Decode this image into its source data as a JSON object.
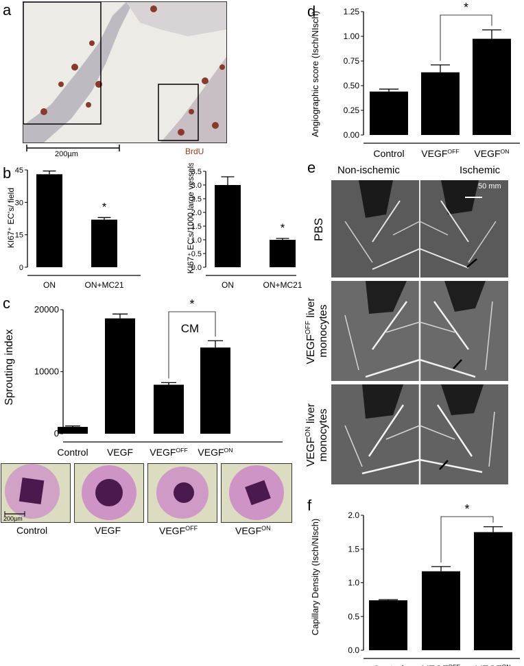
{
  "panels": {
    "a": "a",
    "b": "b",
    "c": "c",
    "d": "d",
    "e": "e",
    "f": "f"
  },
  "panel_a": {
    "scale_label": "200µm",
    "stain_label": "BrdU",
    "stain_color": "#9a3b1b"
  },
  "panel_b": {
    "ylabel_left": "KI67⁺ EC's/ field",
    "ylabel_right": "KI67⁺ EC's/1000 large vessels",
    "star": "*"
  },
  "panel_c": {
    "ylabel": "Sprouting index",
    "cm_label": "CM",
    "star": "*",
    "scale_label": "200µm",
    "thumb_labels": [
      "Control",
      "VEGF",
      "VEGFOFF",
      "VEGFON"
    ],
    "thumb_color": "#b03fc4"
  },
  "panel_d": {
    "ylabel": "Angiographic score (Isch/NIsch)",
    "star": "*"
  },
  "panel_e": {
    "non_ischemic": "Non-ischemic",
    "ischemic": "Ischemic",
    "scale_label": "50 mm",
    "row_labels": [
      "PBS",
      "VEGFOFF liver monocytes",
      "VEGFON liver monocytes"
    ]
  },
  "panel_f": {
    "ylabel": "Capillary Density (Isch/NIsch)",
    "star": "*"
  },
  "chart_data": [
    {
      "id": "b-left",
      "type": "bar",
      "categories": [
        "ON",
        "ON+MC21"
      ],
      "values": [
        43,
        22
      ],
      "errors": [
        1.5,
        1
      ],
      "ylim": [
        0,
        45
      ],
      "yticks": [
        0,
        15,
        30,
        45
      ],
      "ylabel": "KI67⁺ EC's/ field"
    },
    {
      "id": "b-right",
      "type": "bar",
      "categories": [
        "ON",
        "ON+MC21"
      ],
      "values": [
        3.0,
        1.0
      ],
      "errors": [
        0.3,
        0.05
      ],
      "ylim": [
        0,
        3.5
      ],
      "yticks": [
        "0.0",
        "0.5",
        "1.0",
        "1.5",
        "2.0",
        "2.5",
        "3.0",
        "3.5"
      ],
      "ylabel": "KI67⁺ EC's/1000 large vessels"
    },
    {
      "id": "c",
      "type": "bar",
      "categories": [
        "Control",
        "VEGF",
        "VEGFOFF",
        "VEGFON"
      ],
      "values": [
        1100,
        18600,
        7900,
        13900
      ],
      "errors": [
        150,
        700,
        350,
        1100
      ],
      "ylim": [
        0,
        20000
      ],
      "yticks": [
        0,
        10000,
        20000
      ],
      "ylabel": "Sprouting index"
    },
    {
      "id": "d",
      "type": "bar",
      "categories": [
        "Control",
        "VEGFOFF",
        "VEGFON"
      ],
      "values": [
        0.44,
        0.635,
        0.975
      ],
      "errors": [
        0.025,
        0.075,
        0.09
      ],
      "ylim": [
        0,
        1.25
      ],
      "yticks": [
        "0.00",
        "0.25",
        "0.50",
        "0.75",
        "1.00",
        "1.25"
      ],
      "ylabel": "Angiographic score (Isch/NIsch)"
    },
    {
      "id": "f",
      "type": "bar",
      "categories": [
        "Control",
        "VEGFOFF",
        "VEGFON"
      ],
      "values": [
        0.74,
        1.17,
        1.75
      ],
      "errors": [
        0.01,
        0.07,
        0.08
      ],
      "ylim": [
        0,
        2.0
      ],
      "yticks": [
        "0.0",
        "0.5",
        "1.0",
        "1.5",
        "2.0"
      ],
      "ylabel": "Capillary Density (Isch/NIsch)"
    }
  ]
}
